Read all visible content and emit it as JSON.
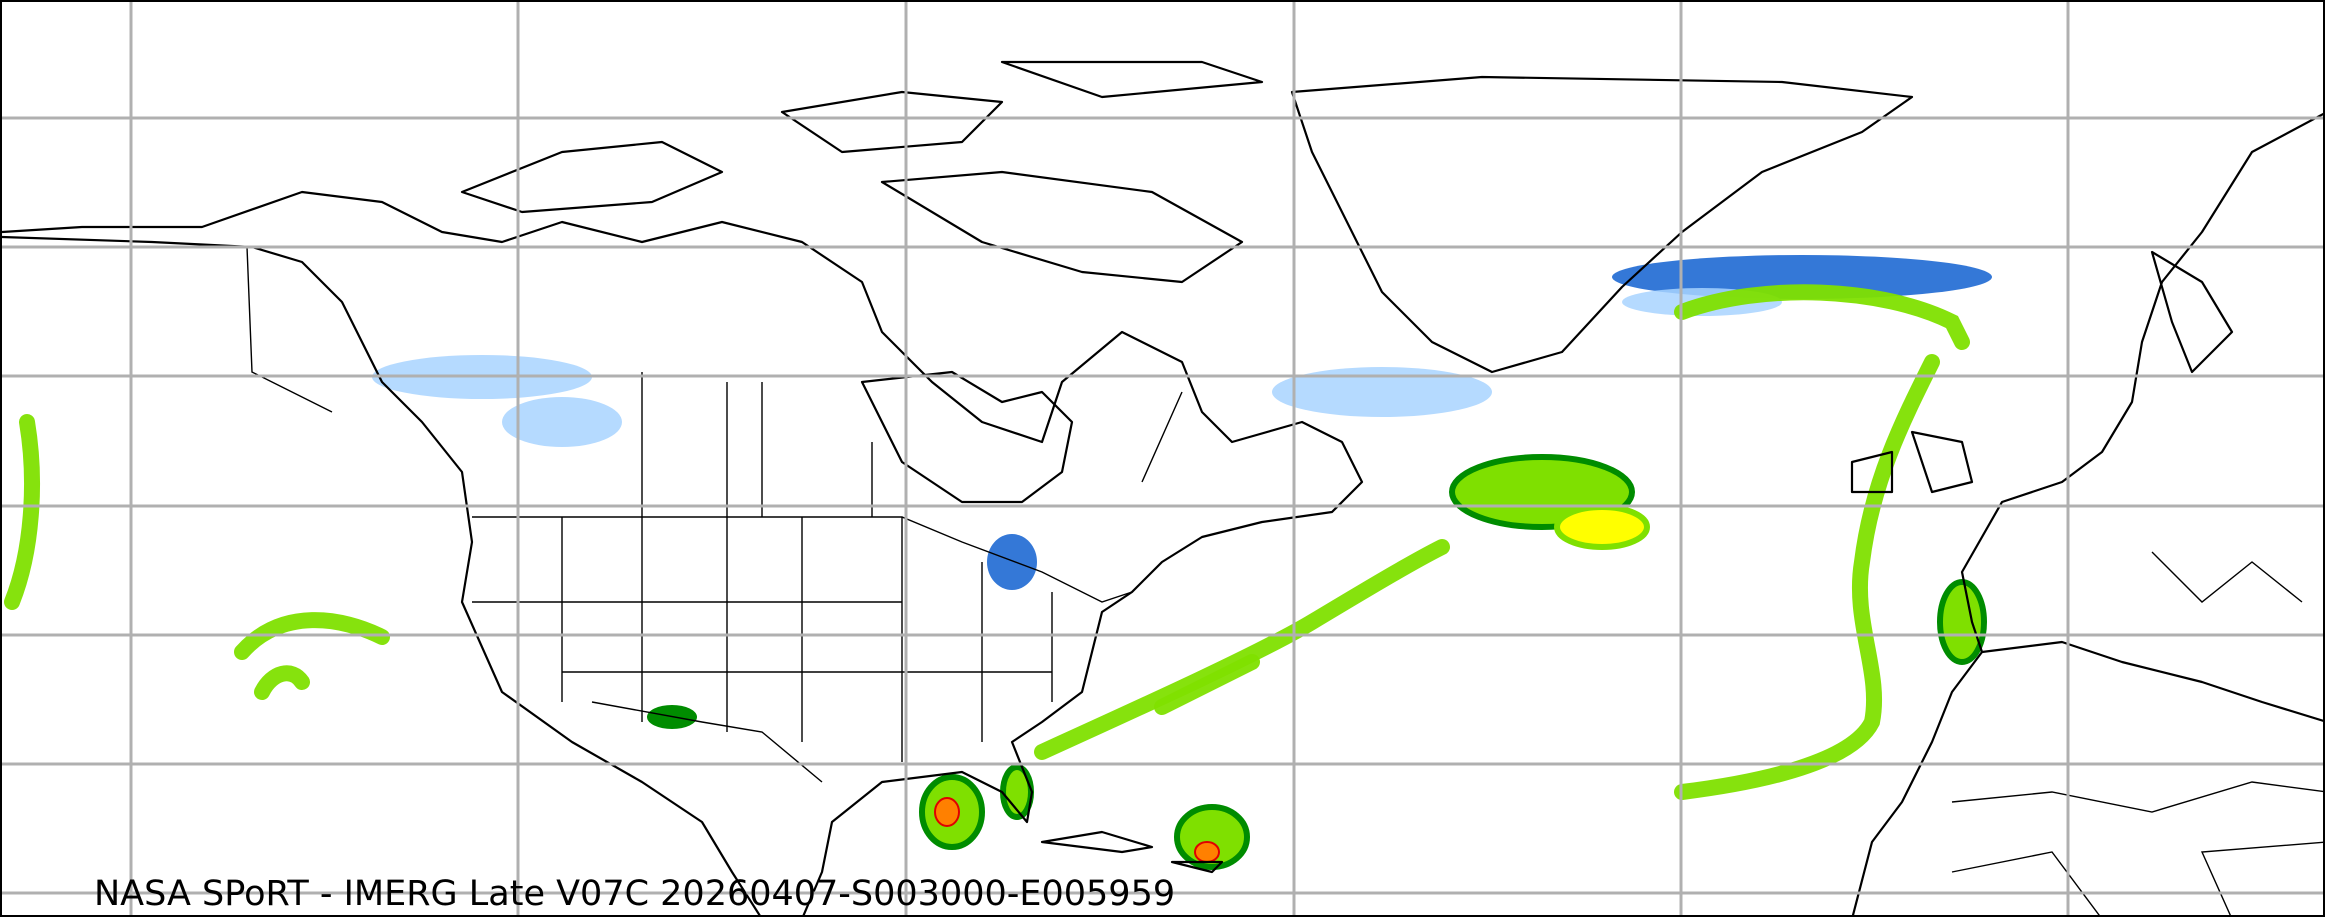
{
  "caption": "NASA SPoRT - IMERG Late V07C 20260407-S003000-E005959",
  "colors": {
    "background": "#ffffff",
    "coastline": "#000000",
    "gridline": "#b0b0b0",
    "rain_light": "#008c00",
    "rain_moderate": "#7fe000",
    "rain_heavy": "#ffff00",
    "rain_very_heavy": "#ff8000",
    "rain_extreme": "#e00000",
    "snow_light": "#a8d4ff",
    "snow_heavy": "#1060d0"
  }
}
